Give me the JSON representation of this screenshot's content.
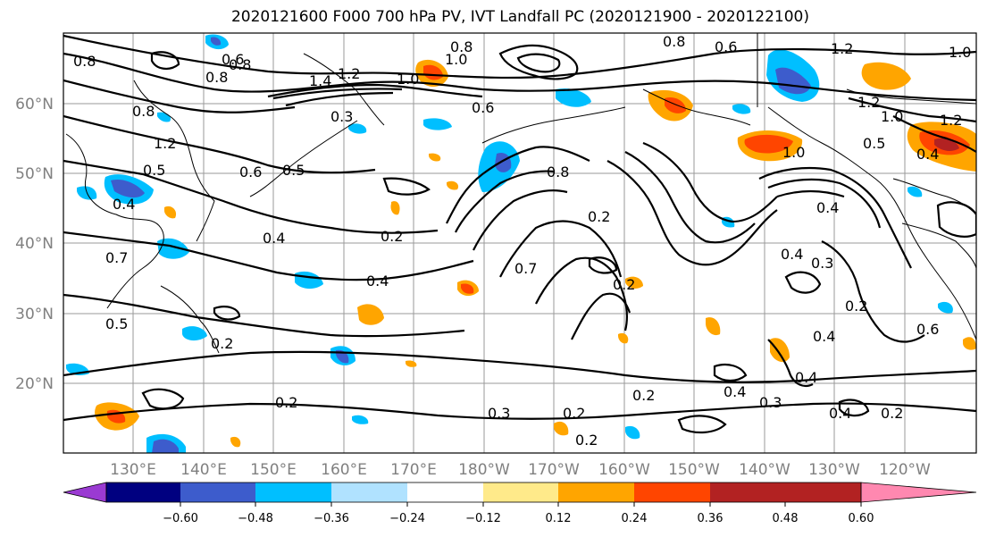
{
  "title": "2020121600 F000 700 hPa PV, IVT Landfall PC (2020121900 - 2020122100)",
  "lat_labels": [
    "60°N",
    "50°N",
    "40°N",
    "30°N",
    "20°N"
  ],
  "lon_labels": [
    "130°E",
    "140°E",
    "150°E",
    "160°E",
    "170°E",
    "180°W",
    "170°W",
    "160°W",
    "150°W",
    "140°W",
    "130°W",
    "120°W"
  ],
  "colorbar": {
    "colors": [
      "#9a3ad2",
      "#000080",
      "#3d5ccc",
      "#00bfff",
      "#b0e2ff",
      "#ffffff",
      "#ffea8a",
      "#ffa500",
      "#ff4500",
      "#b22222",
      "#ff88b0"
    ],
    "ticks": [
      "−0.60",
      "−0.48",
      "−0.36",
      "−0.24",
      "−0.12",
      "0.12",
      "0.24",
      "0.36",
      "0.48",
      "0.60"
    ]
  },
  "contour_labels": [
    "0.8",
    "1.0",
    "0.6",
    "0.8",
    "1.2",
    "1.4",
    "1.2",
    "1.0",
    "0.6",
    "0.8",
    "0.4",
    "0.8",
    "1.2",
    "0.5",
    "0.4",
    "0.7",
    "0.6",
    "0.5",
    "1.0",
    "0.4",
    "0.3",
    "0.4",
    "0.2",
    "0.4",
    "0.7",
    "0.2",
    "0.2",
    "0.4",
    "0.3",
    "0.2",
    "0.4",
    "0.5",
    "0.6",
    "0.2",
    "0.2",
    "0.3",
    "0.2",
    "0.2",
    "0.4",
    "0.3",
    "0.4",
    "0.2",
    "0.2",
    "0.4",
    "0.5",
    "1.2",
    "1.0",
    "0.8",
    "1.0",
    "0.6",
    "1.2",
    "0.8",
    "0.8"
  ]
}
